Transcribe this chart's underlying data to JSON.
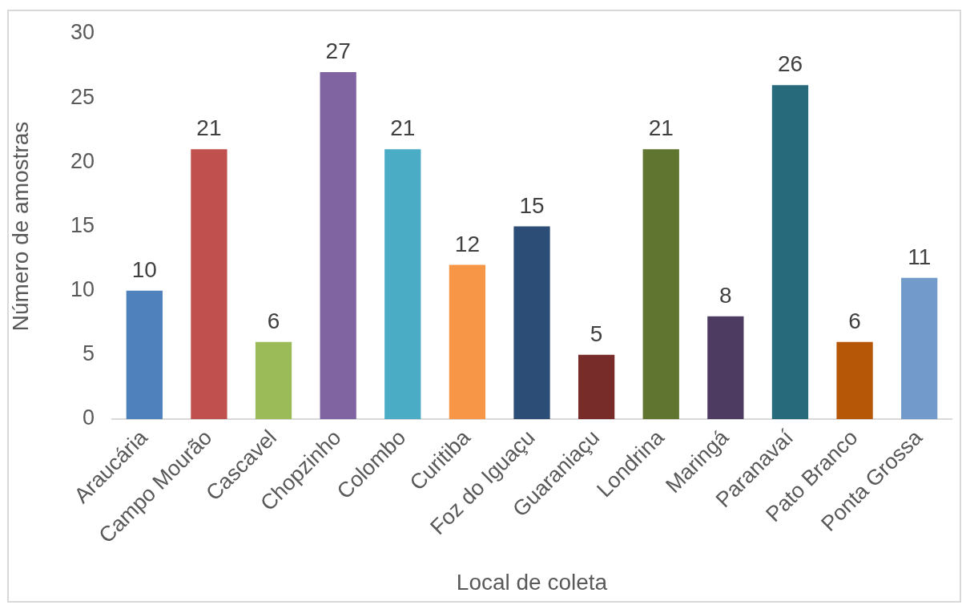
{
  "chart_data": {
    "type": "bar",
    "xlabel": "Local de coleta",
    "ylabel": "Número de amostras",
    "categories": [
      "Araucária",
      "Campo Mourão",
      "Cascavel",
      "Chopzinho",
      "Colombo",
      "Curitiba",
      "Foz do Iguaçu",
      "Guaraniaçu",
      "Londrina",
      "Maringá",
      "Paranavaí",
      "Pato Branco",
      "Ponta Grossa"
    ],
    "values": [
      10,
      21,
      6,
      27,
      21,
      12,
      15,
      5,
      21,
      8,
      26,
      6,
      11
    ],
    "colors": [
      "#4f81bd",
      "#c0504d",
      "#9bbb59",
      "#8064a2",
      "#4bacc6",
      "#f79646",
      "#2c4d75",
      "#772c2a",
      "#5f7530",
      "#4d3b62",
      "#276a7c",
      "#b65708",
      "#729aca"
    ],
    "ylim": [
      0,
      30
    ],
    "yticks": [
      0,
      5,
      10,
      15,
      20,
      25,
      30
    ],
    "data_labels": true,
    "grid": false,
    "legend": false
  }
}
